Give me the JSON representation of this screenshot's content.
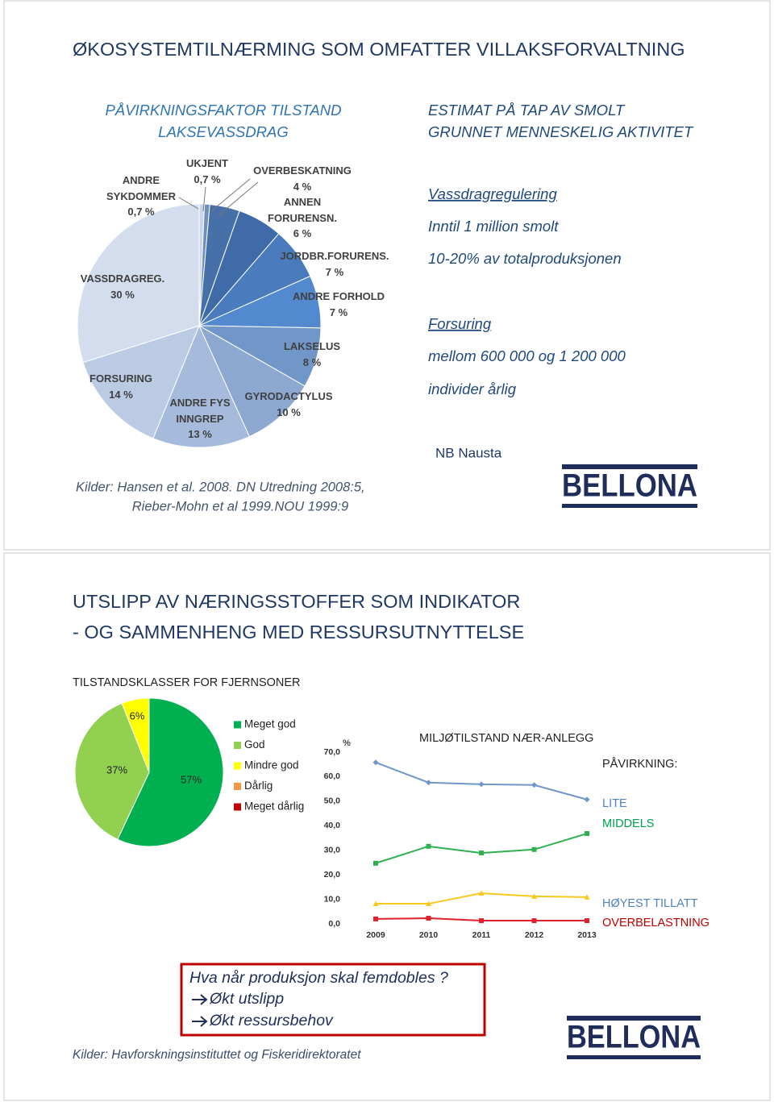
{
  "slides": [
    {
      "title": "ØKOSYSTEMTILNÆRMING SOM OMFATTER VILLAKSFORVALTNING",
      "left_heading": [
        "PÅVIRKNINGSFAKTOR TILSTAND",
        "LAKSEVASSDRAG"
      ],
      "right_heading": [
        "ESTIMAT PÅ TAP AV SMOLT",
        "GRUNNET MENNESKELIG AKTIVITET"
      ],
      "groups": [
        {
          "heading": "Vassdragregulering",
          "lines": [
            "Inntil 1 million smolt",
            "10-20% av totalproduksjonen"
          ]
        },
        {
          "heading": "Forsuring",
          "lines": [
            "mellom 600 000 og 1 200 000",
            "individer årlig"
          ]
        }
      ],
      "note": "NB Nausta",
      "source": [
        "Kilder: Hansen et al. 2008. DN Utredning 2008:5,",
        "Rieber-Mohn et al 1999.NOU 1999:9"
      ],
      "logo": "BELLONA"
    },
    {
      "title": [
        "UTSLIPP AV NÆRINGSSTOFFER SOM INDIKATOR",
        "- OG SAMMENHENG MED RESSURSUTNYTTELSE"
      ],
      "question": "Hva når produksjon skal femdobles ?",
      "points": [
        "Økt utslipp",
        "Økt ressursbehov"
      ],
      "source": "Kilder: Havforskningsinstituttet og Fiskeridirektoratet",
      "logo": "BELLONA"
    }
  ],
  "chart_data": [
    {
      "type": "pie",
      "categories": [
        "ANDRE SYKDOMMER",
        "UKJENT",
        "OVERBESKATNING",
        "ANNEN FORURENSN.",
        "JORDBR.FORURENS.",
        "ANDRE FORHOLD",
        "LAKSELUS",
        "GYRODACTYLUS",
        "ANDRE FYS INNGREP",
        "FORSURING",
        "VASSDRAGREG."
      ],
      "values": [
        0.7,
        0.7,
        4,
        6,
        7,
        7,
        8,
        10,
        13,
        14,
        30
      ],
      "value_labels": [
        "0,7 %",
        "0,7 %",
        "4 %",
        "6 %",
        "7 %",
        "7 %",
        "8 %",
        "10 %",
        "13 %",
        "14 %",
        "30 %"
      ],
      "colors": [
        "#c9d5e8",
        "#6f8fbd",
        "#4670a8",
        "#3f6ca8",
        "#4a7bbd",
        "#5389cf",
        "#7196c8",
        "#8ca7d0",
        "#a6bbdc",
        "#bccbe4",
        "#d3dded"
      ]
    },
    {
      "type": "pie",
      "title": "TILSTANDSKLASSER FOR FJERNSONER",
      "categories": [
        "Meget god",
        "God",
        "Mindre god",
        "Dårlig",
        "Meget dårlig"
      ],
      "values": [
        57,
        37,
        6,
        0,
        0
      ],
      "value_labels": [
        "57%",
        "37%",
        "6%",
        null,
        null
      ],
      "colors": [
        "#00b050",
        "#92d050",
        "#ffff00",
        "#f79646",
        "#c00000"
      ]
    },
    {
      "type": "line",
      "title": "MILJØTILSTAND NÆR-ANLEGG",
      "annotation": "PÅVIRKNING:",
      "ylabel": "%",
      "categories": [
        "2009",
        "2010",
        "2011",
        "2012",
        "2013"
      ],
      "ylim": [
        0,
        70
      ],
      "yticks": [
        {
          "value": 0,
          "label": "0,0"
        },
        {
          "value": 10,
          "label": "10,0"
        },
        {
          "value": 20,
          "label": "20,0"
        },
        {
          "value": 30,
          "label": "30,0"
        },
        {
          "value": 40,
          "label": "40,0"
        },
        {
          "value": 50,
          "label": "50,0"
        },
        {
          "value": 60,
          "label": "60,0"
        },
        {
          "value": 70,
          "label": "70,0"
        }
      ],
      "grid": false,
      "series": [
        {
          "name": "LITE",
          "color": "#6f96c8",
          "label_color": "#4f81bd",
          "marker": "diamond",
          "values": [
            65.8,
            57.6,
            56.9,
            56.6,
            50.7
          ]
        },
        {
          "name": "MIDDELS",
          "color": "#2eb050",
          "label_color": "#00a050",
          "marker": "square",
          "values": [
            24.7,
            31.6,
            28.9,
            30.3,
            36.8
          ]
        },
        {
          "name": "HØYEST TILLATT",
          "color": "#f7c81e",
          "label_color": "#4f81bd",
          "marker": "triangle",
          "values": [
            8.2,
            8.2,
            12.5,
            11.2,
            10.9
          ]
        },
        {
          "name": "OVERBELASTNING",
          "color": "#e0202c",
          "label_color": "#c00000",
          "marker": "square",
          "values": [
            2.0,
            2.3,
            1.3,
            1.3,
            1.3
          ]
        }
      ]
    }
  ]
}
